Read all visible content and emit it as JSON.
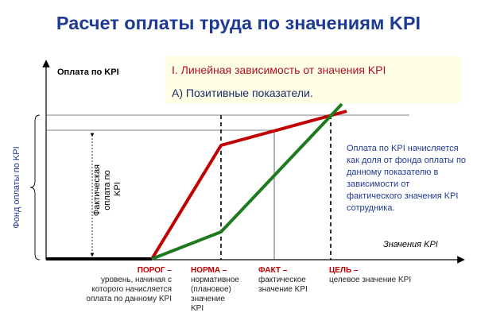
{
  "title": "Расчет оплаты труда по значениям KPI",
  "callout": {
    "line1": "I.   Линейная зависимость от значения KPI",
    "line2": "А) Позитивные показатели."
  },
  "axes": {
    "y_label": "Оплата по KPI",
    "x_label": "Значения KPI",
    "left_label": "Фонд оплаты по KPI",
    "inner_label_lines": [
      "Фактическая",
      "оплата по",
      "KPI"
    ]
  },
  "note": "Оплата по KPI начисляется как доля от фонда оплаты по данному показателю в зависимости от фактического значения KPI сотрудника.",
  "labels": [
    {
      "key": "porog",
      "head": "ПОРОГ –",
      "lines": [
        "уровень, начиная с",
        "которого начисляется",
        "оплата по данному KPI"
      ]
    },
    {
      "key": "norma",
      "head": "НОРМА –",
      "lines": [
        "нормативное",
        "(плановое)",
        "значение",
        "KPI"
      ]
    },
    {
      "key": "fakt",
      "head": "ФАКТ –",
      "lines": [
        "фактическое",
        "значение KPI"
      ]
    },
    {
      "key": "tsel",
      "head": "ЦЕЛЬ –",
      "lines": [
        "целевое значение KPI"
      ]
    }
  ],
  "colors": {
    "title": "#1f3a93",
    "red_line": "#c00000",
    "green_line": "#1e7a1e",
    "callout_bg": "#ffffe6"
  }
}
